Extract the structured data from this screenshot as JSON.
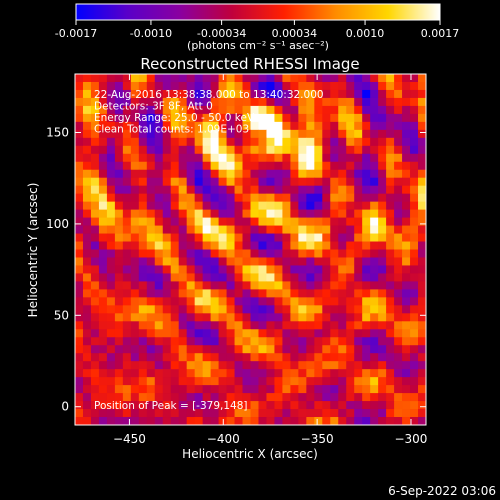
{
  "colorbar": {
    "ticks": [
      "-0.0017",
      "-0.0010",
      "-0.00034",
      "0.00034",
      "0.0010",
      "0.0017"
    ],
    "tick_values": [
      -0.0017,
      -0.001,
      -0.00034,
      0.00034,
      0.001,
      0.0017
    ],
    "vmin": -0.0017,
    "vmax": 0.0017,
    "unit_label": "(photons cm⁻² s⁻¹ asec⁻²)",
    "colormap": [
      "#0000ff",
      "#5a00c8",
      "#8a00a0",
      "#c0003c",
      "#ff2000",
      "#ff8c00",
      "#ffd600",
      "#ffffff"
    ]
  },
  "chart_data": {
    "type": "heatmap",
    "title": "Reconstructed RHESSI Image",
    "xlabel": "Heliocentric X (arcsec)",
    "ylabel": "Heliocentric Y (arcsec)",
    "xlim": [
      -479,
      -292
    ],
    "ylim": [
      -10,
      182
    ],
    "x_ticks": [
      -450,
      -400,
      -350,
      -300
    ],
    "y_ticks": [
      0,
      50,
      100,
      150
    ],
    "info_lines": [
      "22-Aug-2016 13:38:38.000 to 13:40:32.000",
      "Detectors: 3F 8F, Att 0",
      "Energy Range: 25.0 - 50.0 keV",
      "Clean     Total counts: 1.09E+03"
    ],
    "peak_label": "Position of Peak = [-379,148]",
    "peak_position": [
      -379,
      148
    ]
  },
  "footer": {
    "timestamp": "6-Sep-2022 03:06"
  }
}
